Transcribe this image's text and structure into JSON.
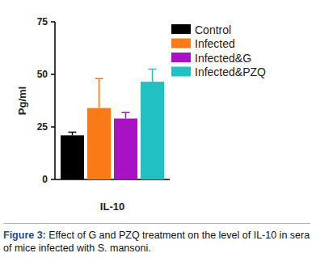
{
  "chart_data": {
    "type": "bar",
    "categories": [
      "IL-10"
    ],
    "y_label": "Pg/ml",
    "ylim": [
      0,
      75
    ],
    "yticks": [
      0,
      25,
      50,
      75
    ],
    "grid": false,
    "legend": "top-right",
    "series": [
      {
        "name": "Control",
        "color": "#000000",
        "values": [
          21
        ],
        "errors": [
          1.5
        ]
      },
      {
        "name": "Infected",
        "color": "#f97a17",
        "values": [
          34
        ],
        "errors": [
          14
        ]
      },
      {
        "name": "Infected&G",
        "color": "#a911c4",
        "values": [
          29
        ],
        "errors": [
          2.8
        ]
      },
      {
        "name": "Infected&PZQ",
        "color": "#21c1c1",
        "values": [
          46.5
        ],
        "errors": [
          6
        ]
      }
    ],
    "caption_label": "Figure 3:",
    "caption": "Effect of G and PZQ treatment on the level of IL-10 in sera of mice infected with S. mansoni."
  }
}
